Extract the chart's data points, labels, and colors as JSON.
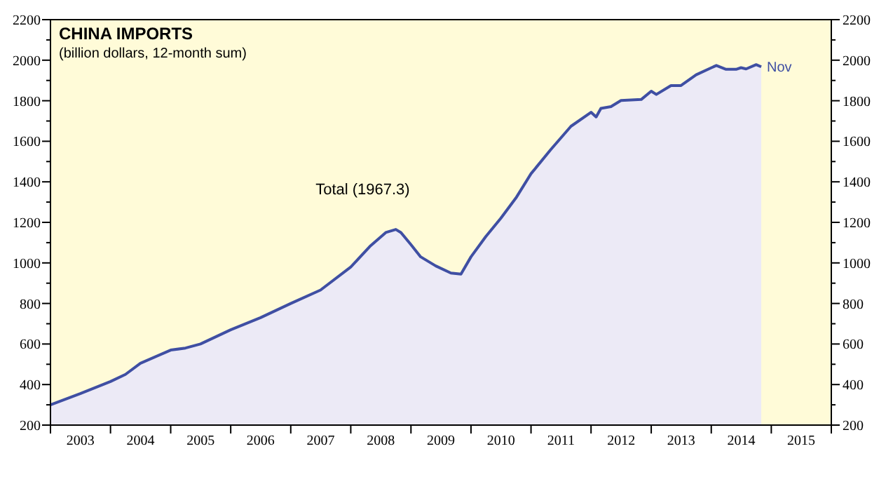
{
  "chart_data": {
    "type": "area",
    "title": "CHINA IMPORTS",
    "subtitle": "(billion dollars, 12-month sum)",
    "xlim": [
      "2003-01-01",
      "2016-01-01"
    ],
    "xticks": [
      {
        "value": "2003-01-01",
        "label": null
      },
      {
        "value": "2003-07-02",
        "label": "2003"
      },
      {
        "value": "2004-01-01",
        "label": null
      },
      {
        "value": "2004-07-02",
        "label": "2004"
      },
      {
        "value": "2005-01-01",
        "label": null
      },
      {
        "value": "2005-07-02",
        "label": "2005"
      },
      {
        "value": "2006-01-01",
        "label": null
      },
      {
        "value": "2006-07-02",
        "label": "2006"
      },
      {
        "value": "2007-01-01",
        "label": null
      },
      {
        "value": "2007-07-02",
        "label": "2007"
      },
      {
        "value": "2008-01-01",
        "label": null
      },
      {
        "value": "2008-07-02",
        "label": "2008"
      },
      {
        "value": "2009-01-01",
        "label": null
      },
      {
        "value": "2009-07-02",
        "label": "2009"
      },
      {
        "value": "2010-01-01",
        "label": null
      },
      {
        "value": "2010-07-02",
        "label": "2010"
      },
      {
        "value": "2011-01-01",
        "label": null
      },
      {
        "value": "2011-07-02",
        "label": "2011"
      },
      {
        "value": "2012-01-01",
        "label": null
      },
      {
        "value": "2012-07-02",
        "label": "2012"
      },
      {
        "value": "2013-01-01",
        "label": null
      },
      {
        "value": "2013-07-02",
        "label": "2013"
      },
      {
        "value": "2014-01-01",
        "label": null
      },
      {
        "value": "2014-07-02",
        "label": "2014"
      },
      {
        "value": "2015-01-01",
        "label": null
      },
      {
        "value": "2015-07-02",
        "label": "2015"
      },
      {
        "value": "2016-01-01",
        "label": null
      }
    ],
    "ylim": [
      200,
      2200
    ],
    "yticks": [
      200,
      {
        "value": 300,
        "label": null
      },
      400,
      {
        "value": 500,
        "label": null
      },
      600,
      {
        "value": 700,
        "label": null
      },
      800,
      {
        "value": 900,
        "label": null
      },
      1000,
      {
        "value": 1100,
        "label": null
      },
      1200,
      {
        "value": 1300,
        "label": null
      },
      1400,
      {
        "value": 1500,
        "label": null
      },
      1600,
      {
        "value": 1700,
        "label": null
      },
      1800,
      {
        "value": 1900,
        "label": null
      },
      2000,
      {
        "value": 2100,
        "label": null
      },
      2200
    ],
    "y2lim": [
      200,
      2200
    ],
    "y2ticks": [
      200,
      {
        "value": 300,
        "label": null
      },
      400,
      {
        "value": 500,
        "label": null
      },
      600,
      {
        "value": 700,
        "label": null
      },
      800,
      {
        "value": 900,
        "label": null
      },
      1000,
      {
        "value": 1100,
        "label": null
      },
      1200,
      {
        "value": 1300,
        "label": null
      },
      1400,
      {
        "value": 1500,
        "label": null
      },
      1600,
      {
        "value": 1700,
        "label": null
      },
      1800,
      {
        "value": 1900,
        "label": null
      },
      2000,
      {
        "value": 2100,
        "label": null
      },
      2200
    ],
    "annotations": [
      {
        "text": "Nov",
        "x": "2014-11",
        "y": 1967.3
      }
    ],
    "series": [
      {
        "name": "Total (1967.3)",
        "color": "#3f4fa3",
        "x": [
          "2003-01",
          "2003-07",
          "2004-01",
          "2004-04",
          "2004-07",
          "2005-01",
          "2005-04",
          "2005-07",
          "2006-01",
          "2006-07",
          "2007-01",
          "2007-07",
          "2008-01",
          "2008-05",
          "2008-08",
          "2008-10",
          "2008-11",
          "2009-01",
          "2009-03",
          "2009-06",
          "2009-09",
          "2009-11",
          "2010-01",
          "2010-04",
          "2010-07",
          "2010-10",
          "2011-01",
          "2011-05",
          "2011-09",
          "2012-01",
          "2012-02",
          "2012-03",
          "2012-05",
          "2012-07",
          "2012-11",
          "2013-01",
          "2013-02",
          "2013-05",
          "2013-07",
          "2013-10",
          "2014-02",
          "2014-04",
          "2014-06",
          "2014-07",
          "2014-08",
          "2014-10",
          "2014-11"
        ],
        "values": [
          300,
          355,
          415,
          450,
          505,
          570,
          580,
          600,
          670,
          730,
          800,
          866,
          980,
          1085,
          1150,
          1165,
          1150,
          1090,
          1030,
          985,
          950,
          945,
          1030,
          1130,
          1220,
          1320,
          1440,
          1559,
          1674,
          1743,
          1720,
          1762,
          1771,
          1801,
          1806,
          1847,
          1831,
          1875,
          1875,
          1928,
          1974,
          1955,
          1955,
          1963,
          1957,
          1978,
          1967.3
        ]
      }
    ]
  }
}
